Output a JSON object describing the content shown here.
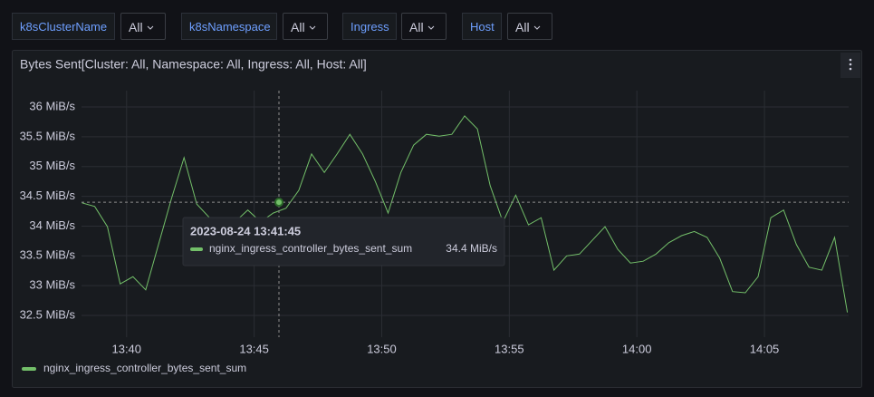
{
  "variables": [
    {
      "name": "k8sClusterName",
      "value": "All"
    },
    {
      "name": "k8sNamespace",
      "value": "All"
    },
    {
      "name": "Ingress",
      "value": "All"
    },
    {
      "name": "Host",
      "value": "All"
    }
  ],
  "chart_data": {
    "type": "line",
    "title": "Bytes Sent[Cluster: All, Namespace: All, Ingress: All, Host: All]",
    "x": [
      "13:38:15",
      "13:38:45",
      "13:39:15",
      "13:39:45",
      "13:40:15",
      "13:40:45",
      "13:41:15",
      "13:41:45",
      "13:42:15",
      "13:42:45",
      "13:43:15",
      "13:43:45",
      "13:44:15",
      "13:44:45",
      "13:45:15",
      "13:45:45",
      "13:46:15",
      "13:46:45",
      "13:47:15",
      "13:47:45",
      "13:48:15",
      "13:48:45",
      "13:49:15",
      "13:49:45",
      "13:50:15",
      "13:50:45",
      "13:51:15",
      "13:51:45",
      "13:52:15",
      "13:52:45",
      "13:53:15",
      "13:53:45",
      "13:54:15",
      "13:54:45",
      "13:55:15",
      "13:55:45",
      "13:56:15",
      "13:56:45",
      "13:57:15",
      "13:57:45",
      "13:58:15",
      "13:58:45",
      "13:59:15",
      "13:59:45",
      "14:00:15",
      "14:00:45",
      "14:01:15",
      "14:01:45",
      "14:02:15",
      "14:02:45",
      "14:03:15",
      "14:03:45",
      "14:04:15",
      "14:04:45",
      "14:05:15",
      "14:05:45",
      "14:06:15",
      "14:06:45",
      "14:07:15",
      "14:07:45",
      "14:08:15"
    ],
    "series": [
      {
        "name": "nginx_ingress_controller_bytes_sent_sum",
        "color": "#73bf69",
        "values": [
          34.39,
          34.33,
          33.99,
          33.03,
          33.15,
          32.93,
          33.69,
          34.45,
          35.15,
          34.37,
          34.14,
          33.84,
          34.07,
          34.27,
          34.07,
          34.22,
          34.3,
          34.6,
          35.21,
          34.9,
          35.21,
          35.54,
          35.21,
          34.75,
          34.22,
          34.9,
          35.36,
          35.54,
          35.51,
          35.54,
          35.85,
          35.63,
          34.68,
          34.07,
          34.52,
          34.02,
          34.14,
          33.26,
          33.5,
          33.53,
          33.76,
          33.99,
          33.61,
          33.38,
          33.41,
          33.53,
          33.72,
          33.84,
          33.91,
          33.81,
          33.46,
          32.9,
          32.88,
          33.15,
          34.14,
          34.27,
          33.69,
          33.31,
          33.26,
          33.81,
          32.55
        ]
      }
    ],
    "xlim": [
      "13:38:14",
      "14:08:18"
    ],
    "xticks": [
      "13:40",
      "13:45",
      "13:50",
      "13:55",
      "14:00",
      "14:05"
    ],
    "ylim": [
      32.135,
      36.274
    ],
    "yticks": [
      {
        "value": 32.5,
        "label": "32.5 MiB/s"
      },
      {
        "value": 33,
        "label": "33 MiB/s"
      },
      {
        "value": 33.5,
        "label": "33.5 MiB/s"
      },
      {
        "value": 34,
        "label": "34 MiB/s"
      },
      {
        "value": 34.5,
        "label": "34.5 MiB/s"
      },
      {
        "value": 35,
        "label": "35 MiB/s"
      },
      {
        "value": 35.5,
        "label": "35.5 MiB/s"
      },
      {
        "value": 36,
        "label": "36 MiB/s"
      }
    ],
    "grid": true,
    "tooltip": {
      "time": "2023-08-24 13:41:45",
      "series": "nginx_ingress_controller_bytes_sent_sum",
      "value": 34.4,
      "label": "34.4 MiB/s"
    }
  }
}
